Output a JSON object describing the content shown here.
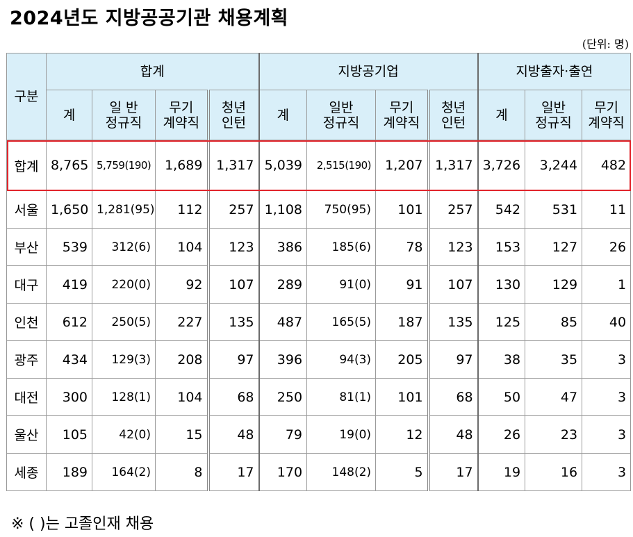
{
  "title": "2024년도 지방공공기관 채용계획",
  "unit": "(단위: 명)",
  "note": "※ (   )는 고졸인재 채용",
  "header": {
    "category": "구분",
    "groups": [
      "합계",
      "지방공기업",
      "지방출자·출연"
    ],
    "sub": [
      "계",
      "일 반\n정규직",
      "무기\n계약직",
      "청년\n인턴",
      "계",
      "일반\n정규직",
      "무기\n계약직",
      "청년\n인턴",
      "계",
      "일반\n정규직",
      "무기\n계약직"
    ]
  },
  "rows": [
    {
      "label": "합계",
      "cells": [
        "8,765",
        "5,759(190)",
        "1,689",
        "1,317",
        "5,039",
        "2,515(190)",
        "1,207",
        "1,317",
        "3,726",
        "3,244",
        "482"
      ]
    },
    {
      "label": "서울",
      "cells": [
        "1,650",
        "1,281(95)",
        "112",
        "257",
        "1,108",
        "750(95)",
        "101",
        "257",
        "542",
        "531",
        "11"
      ]
    },
    {
      "label": "부산",
      "cells": [
        "539",
        "312(6)",
        "104",
        "123",
        "386",
        "185(6)",
        "78",
        "123",
        "153",
        "127",
        "26"
      ]
    },
    {
      "label": "대구",
      "cells": [
        "419",
        "220(0)",
        "92",
        "107",
        "289",
        "91(0)",
        "91",
        "107",
        "130",
        "129",
        "1"
      ]
    },
    {
      "label": "인천",
      "cells": [
        "612",
        "250(5)",
        "227",
        "135",
        "487",
        "165(5)",
        "187",
        "135",
        "125",
        "85",
        "40"
      ]
    },
    {
      "label": "광주",
      "cells": [
        "434",
        "129(3)",
        "208",
        "97",
        "396",
        "94(3)",
        "205",
        "97",
        "38",
        "35",
        "3"
      ]
    },
    {
      "label": "대전",
      "cells": [
        "300",
        "128(1)",
        "104",
        "68",
        "250",
        "81(1)",
        "101",
        "68",
        "50",
        "47",
        "3"
      ]
    },
    {
      "label": "울산",
      "cells": [
        "105",
        "42(0)",
        "15",
        "48",
        "79",
        "19(0)",
        "12",
        "48",
        "26",
        "23",
        "3"
      ]
    },
    {
      "label": "세종",
      "cells": [
        "189",
        "164(2)",
        "8",
        "17",
        "170",
        "148(2)",
        "5",
        "17",
        "19",
        "16",
        "3"
      ]
    }
  ],
  "colors": {
    "header_bg": "#d9eff9",
    "total_outline": "#e1252c"
  }
}
